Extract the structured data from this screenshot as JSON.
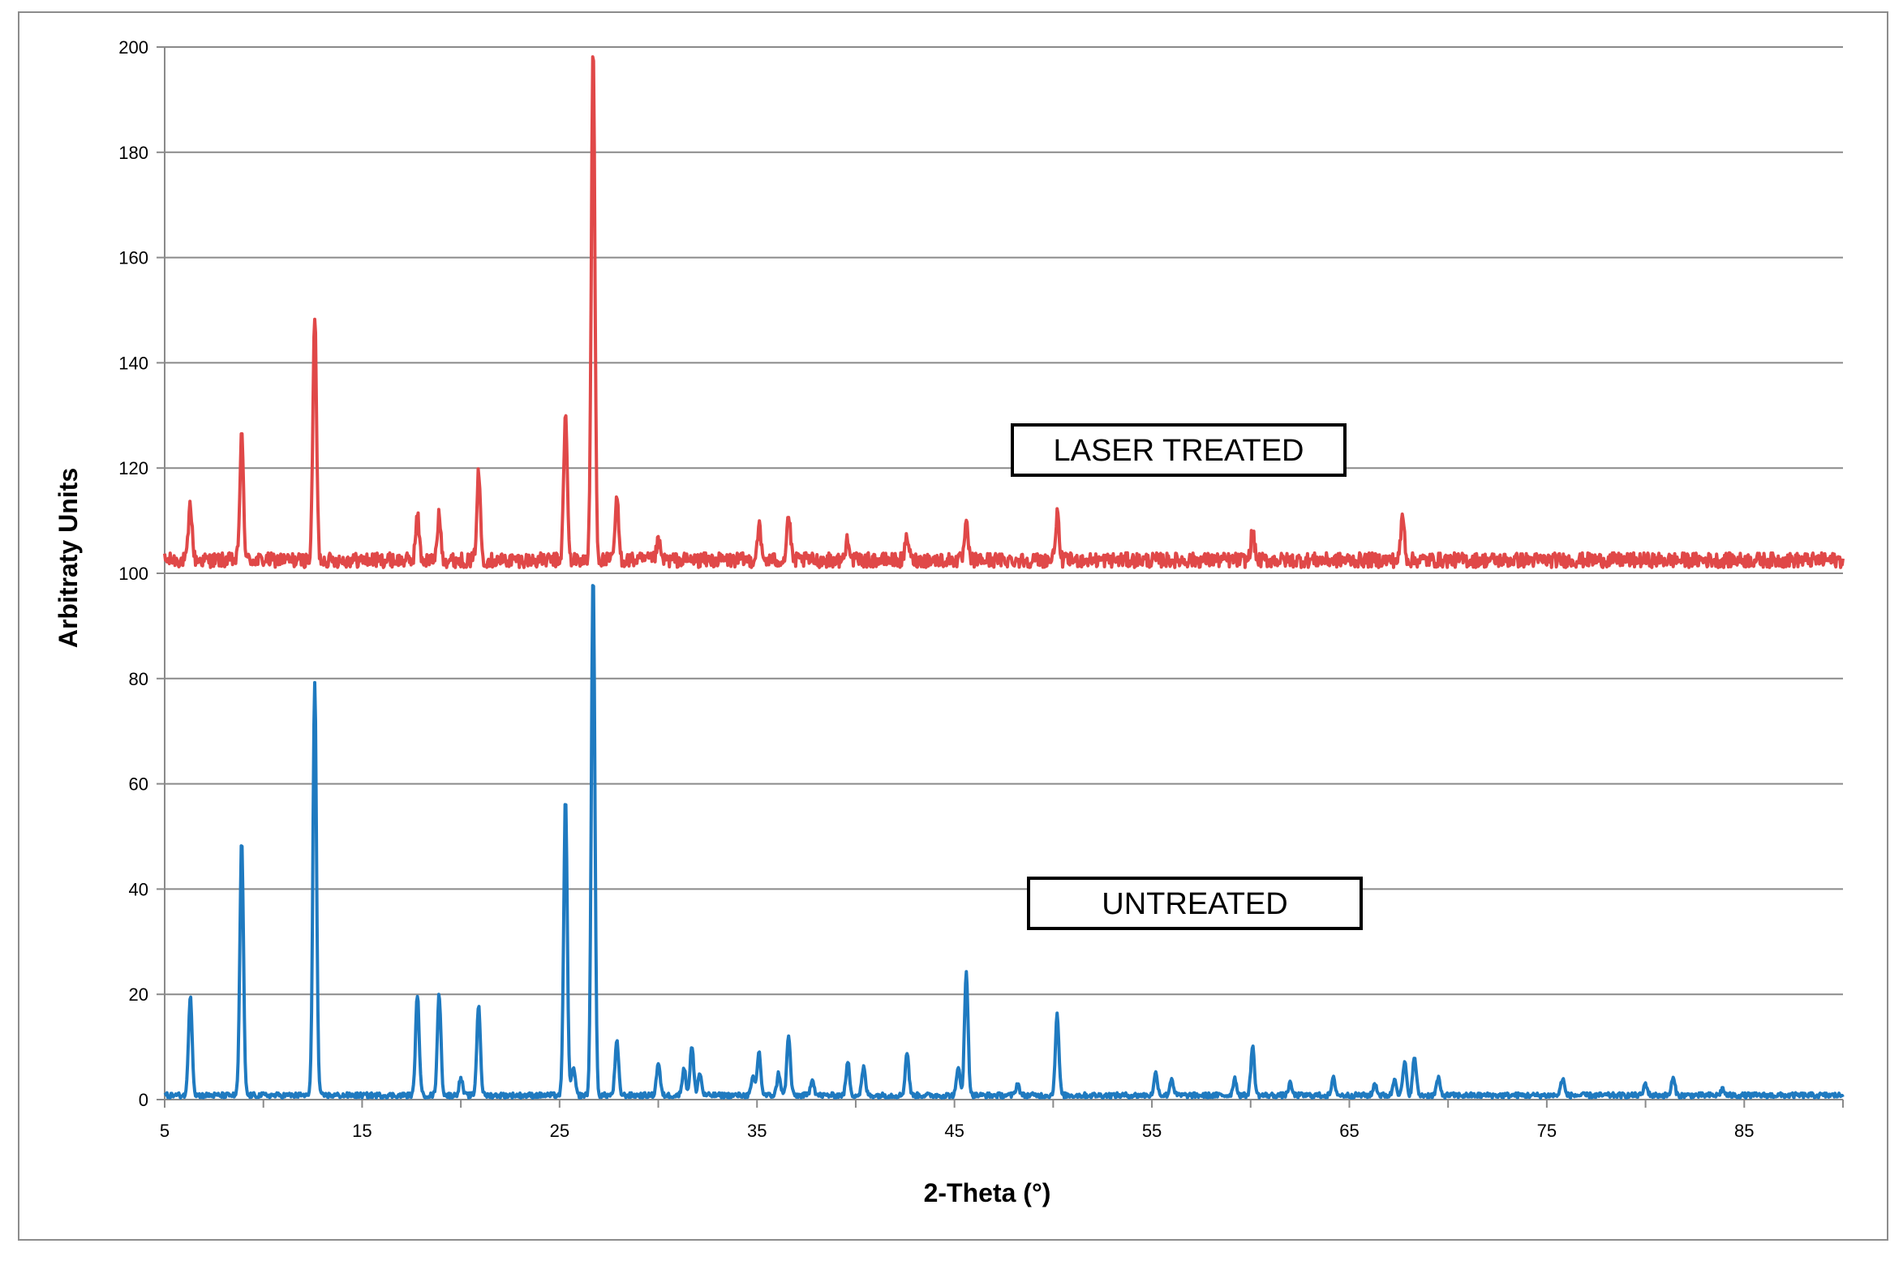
{
  "chart_data": {
    "type": "line",
    "title": "",
    "xlabel": "2-Theta (°)",
    "ylabel": "Arbitraty Units",
    "xlim": [
      5,
      90
    ],
    "ylim": [
      0,
      200
    ],
    "x_ticks": [
      5,
      15,
      25,
      35,
      45,
      55,
      65,
      75,
      85
    ],
    "y_ticks": [
      0,
      20,
      40,
      60,
      80,
      100,
      120,
      140,
      160,
      180,
      200
    ],
    "grid": "horizontal",
    "annotations": [
      "LASER TREATED",
      "UNTREATED"
    ],
    "series": [
      {
        "label": "LASER TREATED",
        "color": "#e04848",
        "baseline": 102.5,
        "noise": 1.4,
        "peaks": [
          [
            6.3,
            113
          ],
          [
            8.9,
            126
          ],
          [
            12.6,
            149
          ],
          [
            17.8,
            111
          ],
          [
            18.9,
            111
          ],
          [
            20.9,
            119
          ],
          [
            25.3,
            130
          ],
          [
            26.7,
            200
          ],
          [
            27.9,
            114
          ],
          [
            30.0,
            106
          ],
          [
            35.1,
            109
          ],
          [
            36.6,
            111
          ],
          [
            39.6,
            107
          ],
          [
            42.6,
            107
          ],
          [
            45.6,
            109
          ],
          [
            50.2,
            111
          ],
          [
            60.1,
            108
          ],
          [
            67.7,
            111
          ]
        ]
      },
      {
        "label": "UNTREATED",
        "color": "#1f7ac0",
        "baseline": 0.8,
        "noise": 0.5,
        "peaks": [
          [
            6.3,
            20
          ],
          [
            8.9,
            49
          ],
          [
            12.6,
            79
          ],
          [
            17.8,
            20
          ],
          [
            18.9,
            20
          ],
          [
            20.0,
            4
          ],
          [
            20.9,
            18
          ],
          [
            25.3,
            57
          ],
          [
            25.7,
            6
          ],
          [
            26.7,
            100
          ],
          [
            27.9,
            11
          ],
          [
            30.0,
            7
          ],
          [
            31.3,
            6
          ],
          [
            31.7,
            10
          ],
          [
            32.1,
            5
          ],
          [
            34.8,
            4
          ],
          [
            35.1,
            9
          ],
          [
            36.1,
            5
          ],
          [
            36.6,
            12
          ],
          [
            37.8,
            4
          ],
          [
            39.6,
            7
          ],
          [
            40.4,
            6
          ],
          [
            42.6,
            9
          ],
          [
            45.2,
            6
          ],
          [
            45.6,
            24
          ],
          [
            48.2,
            3
          ],
          [
            50.2,
            16
          ],
          [
            55.2,
            5
          ],
          [
            56.0,
            4
          ],
          [
            59.2,
            4
          ],
          [
            60.1,
            10
          ],
          [
            62.0,
            3
          ],
          [
            64.2,
            4
          ],
          [
            66.3,
            3
          ],
          [
            67.3,
            4
          ],
          [
            67.8,
            7
          ],
          [
            68.3,
            8
          ],
          [
            69.5,
            4
          ],
          [
            75.8,
            4
          ],
          [
            80.0,
            3
          ],
          [
            81.4,
            4
          ],
          [
            83.9,
            2
          ]
        ]
      }
    ]
  }
}
